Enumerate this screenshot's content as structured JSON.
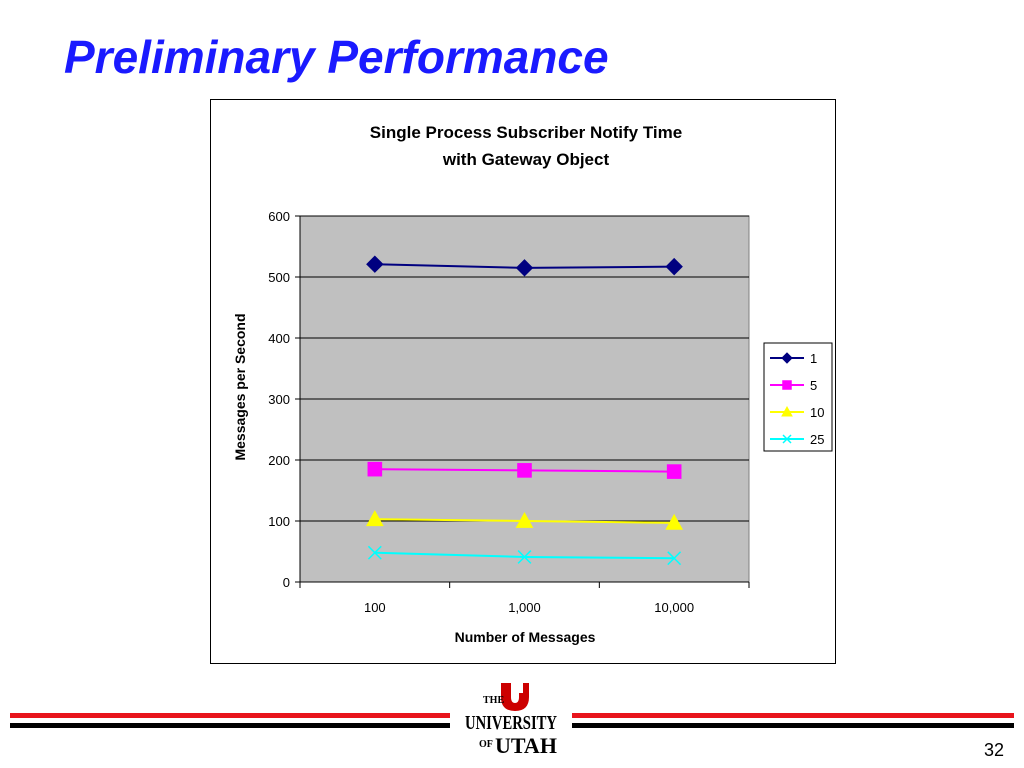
{
  "slide": {
    "title": "Preliminary Performance",
    "page_number": "32"
  },
  "logo": {
    "the": "THE",
    "university": "UNIVERSITY",
    "of": "OF",
    "utah": "UTAH",
    "color": "#cc0000"
  },
  "chart_data": {
    "type": "line",
    "title": "Single Process Subscriber Notify Time",
    "subtitle": "with Gateway Object",
    "xlabel": "Number of Messages",
    "ylabel": "Messages per Second",
    "categories": [
      "100",
      "1,000",
      "10,000"
    ],
    "ylim": [
      0,
      600
    ],
    "yticks": [
      "0",
      "100",
      "200",
      "300",
      "400",
      "500",
      "600"
    ],
    "grid": true,
    "plot_background": "#c0c0c0",
    "legend_position": "right",
    "series": [
      {
        "name": "1",
        "values": [
          521,
          515,
          517
        ],
        "color": "#000080",
        "marker": "diamond"
      },
      {
        "name": "5",
        "values": [
          185,
          183,
          181
        ],
        "color": "#ff00ff",
        "marker": "square"
      },
      {
        "name": "10",
        "values": [
          103,
          100,
          97
        ],
        "color": "#ffff00",
        "marker": "triangle"
      },
      {
        "name": "25",
        "values": [
          48,
          41,
          39
        ],
        "color": "#00ffff",
        "marker": "x"
      }
    ]
  },
  "footer": {
    "line_colors": [
      "#e8141c",
      "#000000"
    ]
  }
}
